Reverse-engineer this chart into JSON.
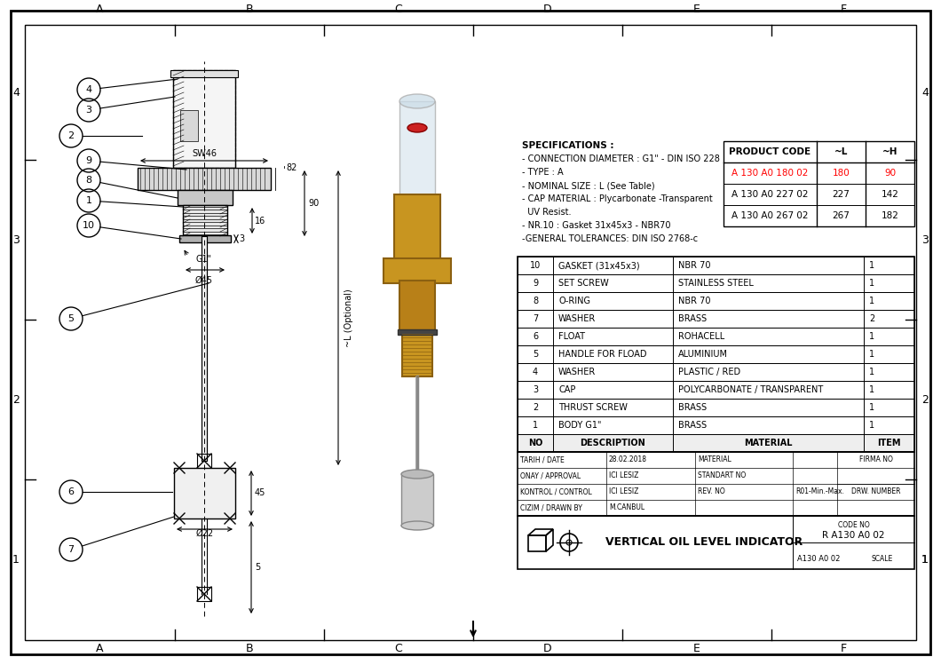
{
  "bg_color": "#ffffff",
  "specs_text": [
    "SPECIFICATIONS :",
    "- CONNECTION DIAMETER : G1\" - DIN ISO 228",
    "- TYPE : A",
    "- NOMINAL SIZE : L (See Table)",
    "- CAP MATERIAL : Plycarbonate -Transparent",
    "  UV Resist.",
    "- NR.10 : Gasket 31x45x3 - NBR70",
    "-GENERAL TOLERANCES: DIN ISO 2768-c"
  ],
  "product_table": {
    "headers": [
      "PRODUCT CODE",
      "~L",
      "~H"
    ],
    "rows": [
      [
        "A 130 A0 180 02",
        "180",
        "90"
      ],
      [
        "A 130 A0 227 02",
        "227",
        "142"
      ],
      [
        "A 130 A0 267 02",
        "267",
        "182"
      ]
    ],
    "highlight_row": 0
  },
  "bom_rows": [
    [
      "10",
      "GASKET (31x45x3)",
      "NBR 70",
      "1"
    ],
    [
      "9",
      "SET SCREW",
      "STAINLESS STEEL",
      "1"
    ],
    [
      "8",
      "O-RING",
      "NBR 70",
      "1"
    ],
    [
      "7",
      "WASHER",
      "BRASS",
      "2"
    ],
    [
      "6",
      "FLOAT",
      "ROHACELL",
      "1"
    ],
    [
      "5",
      "HANDLE FOR FLOAD",
      "ALUMINIUM",
      "1"
    ],
    [
      "4",
      "WASHER",
      "PLASTIC / RED",
      "1"
    ],
    [
      "3",
      "CAP",
      "POLYCARBONATE / TRANSPARENT",
      "1"
    ],
    [
      "2",
      "THRUST SCREW",
      "BRASS",
      "1"
    ],
    [
      "1",
      "BODY G1\"",
      "BRASS",
      "1"
    ]
  ],
  "bom_headers": [
    "NO",
    "DESCRIPTION",
    "MATERIAL",
    "ITEM"
  ],
  "title_block": {
    "date": "28.02.2018",
    "approval": "ICI LESIZ",
    "control": "ICI LESIZ",
    "drawn_by": "M.CANBUL",
    "standart_no": "STANDART NO",
    "rev_no": "REV. NO",
    "rev_val": "R01-Min.-Max.",
    "firma_no": "FIRMA NO",
    "drw_number": "DRW. NUMBER",
    "code_no": "CODE NO",
    "code_val": "R A130 A0 02",
    "part_no": "A130 A0 02",
    "scale": "SCALE",
    "title": "VERTICAL OIL LEVEL INDICATOR"
  },
  "grid_letters": [
    "A",
    "B",
    "C",
    "D",
    "E",
    "F"
  ],
  "grid_numbers": [
    "1",
    "2",
    "3",
    "4"
  ],
  "lc": "#000000",
  "red": "#ff0000"
}
